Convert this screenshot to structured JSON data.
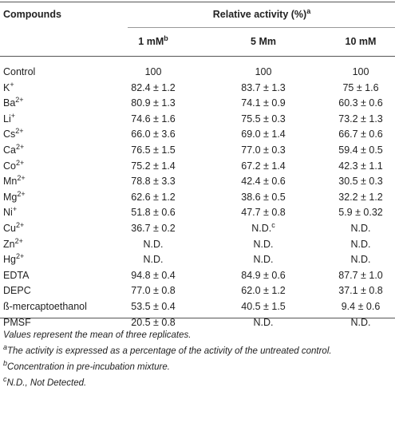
{
  "header": {
    "compounds": "Compounds",
    "group": {
      "text": "Relative activity (%)",
      "sup": "a"
    },
    "columns": [
      {
        "text": "1 mM",
        "sup": "b"
      },
      {
        "text": "5 Mm"
      },
      {
        "text": "10 mM"
      }
    ]
  },
  "table": {
    "rows": [
      {
        "compound": {
          "text": "Control"
        },
        "cells": [
          {
            "text": "100"
          },
          {
            "text": "100"
          },
          {
            "text": "100"
          }
        ]
      },
      {
        "compound": {
          "text": "K",
          "sup": "+"
        },
        "cells": [
          {
            "text": "82.4 ± 1.2"
          },
          {
            "text": "83.7 ± 1.3"
          },
          {
            "text": "75 ± 1.6"
          }
        ]
      },
      {
        "compound": {
          "text": "Ba",
          "sup": "2+"
        },
        "cells": [
          {
            "text": "80.9 ± 1.3"
          },
          {
            "text": "74.1 ± 0.9"
          },
          {
            "text": "60.3 ± 0.6"
          }
        ]
      },
      {
        "compound": {
          "text": "Li",
          "sup": "+"
        },
        "cells": [
          {
            "text": "74.6 ± 1.6"
          },
          {
            "text": "75.5 ± 0.3"
          },
          {
            "text": "73.2 ± 1.3"
          }
        ]
      },
      {
        "compound": {
          "text": "Cs",
          "sup": "2+"
        },
        "cells": [
          {
            "text": "66.0 ± 3.6"
          },
          {
            "text": "69.0 ± 1.4"
          },
          {
            "text": "66.7 ± 0.6"
          }
        ]
      },
      {
        "compound": {
          "text": "Ca",
          "sup": "2+"
        },
        "cells": [
          {
            "text": "76.5 ± 1.5"
          },
          {
            "text": "77.0 ± 0.3"
          },
          {
            "text": "59.4 ± 0.5"
          }
        ]
      },
      {
        "compound": {
          "text": "Co",
          "sup": "2+"
        },
        "cells": [
          {
            "text": "75.2 ± 1.4"
          },
          {
            "text": "67.2 ± 1.4"
          },
          {
            "text": "42.3 ± 1.1"
          }
        ]
      },
      {
        "compound": {
          "text": "Mn",
          "sup": "2+"
        },
        "cells": [
          {
            "text": "78.8 ± 3.3"
          },
          {
            "text": "42.4 ± 0.6"
          },
          {
            "text": "30.5 ± 0.3"
          }
        ]
      },
      {
        "compound": {
          "text": "Mg",
          "sup": "2+"
        },
        "cells": [
          {
            "text": "62.6 ± 1.2"
          },
          {
            "text": "38.6 ± 0.5"
          },
          {
            "text": "32.2 ± 1.2"
          }
        ]
      },
      {
        "compound": {
          "text": "Ni",
          "sup": "+"
        },
        "cells": [
          {
            "text": "51.8 ± 0.6"
          },
          {
            "text": "47.7 ± 0.8"
          },
          {
            "text": "5.9 ± 0.32"
          }
        ]
      },
      {
        "compound": {
          "text": "Cu",
          "sup": "2+"
        },
        "cells": [
          {
            "text": "36.7 ± 0.2"
          },
          {
            "text": "N.D.",
            "sup": "c"
          },
          {
            "text": "N.D."
          }
        ]
      },
      {
        "compound": {
          "text": "Zn",
          "sup": "2+"
        },
        "cells": [
          {
            "text": "N.D."
          },
          {
            "text": "N.D."
          },
          {
            "text": "N.D."
          }
        ]
      },
      {
        "compound": {
          "text": "Hg",
          "sup": "2+"
        },
        "cells": [
          {
            "text": "N.D."
          },
          {
            "text": "N.D."
          },
          {
            "text": "N.D."
          }
        ]
      },
      {
        "compound": {
          "text": "EDTA"
        },
        "cells": [
          {
            "text": "94.8 ± 0.4"
          },
          {
            "text": "84.9 ± 0.6"
          },
          {
            "text": "87.7 ± 1.0"
          }
        ]
      },
      {
        "compound": {
          "text": "DEPC"
        },
        "cells": [
          {
            "text": "77.0 ± 0.8"
          },
          {
            "text": "62.0 ± 1.2"
          },
          {
            "text": "37.1 ± 0.8"
          }
        ]
      },
      {
        "compound": {
          "text": "ß-mercaptoethanol"
        },
        "cells": [
          {
            "text": "53.5 ± 0.4"
          },
          {
            "text": "40.5 ± 1.5"
          },
          {
            "text": "9.4 ± 0.6"
          }
        ]
      },
      {
        "compound": {
          "text": "PMSF"
        },
        "cells": [
          {
            "text": "20.5 ± 0.8"
          },
          {
            "text": "N.D."
          },
          {
            "text": "N.D."
          }
        ]
      }
    ]
  },
  "footnotes": [
    {
      "text": "Values represent the mean of three replicates."
    },
    {
      "sup": "a",
      "text": "The activity is expressed as a percentage of the activity of the untreated control."
    },
    {
      "sup": "b",
      "text": "Concentration in pre-incubation mixture."
    },
    {
      "sup": "c",
      "text": "N.D., Not Detected."
    }
  ]
}
